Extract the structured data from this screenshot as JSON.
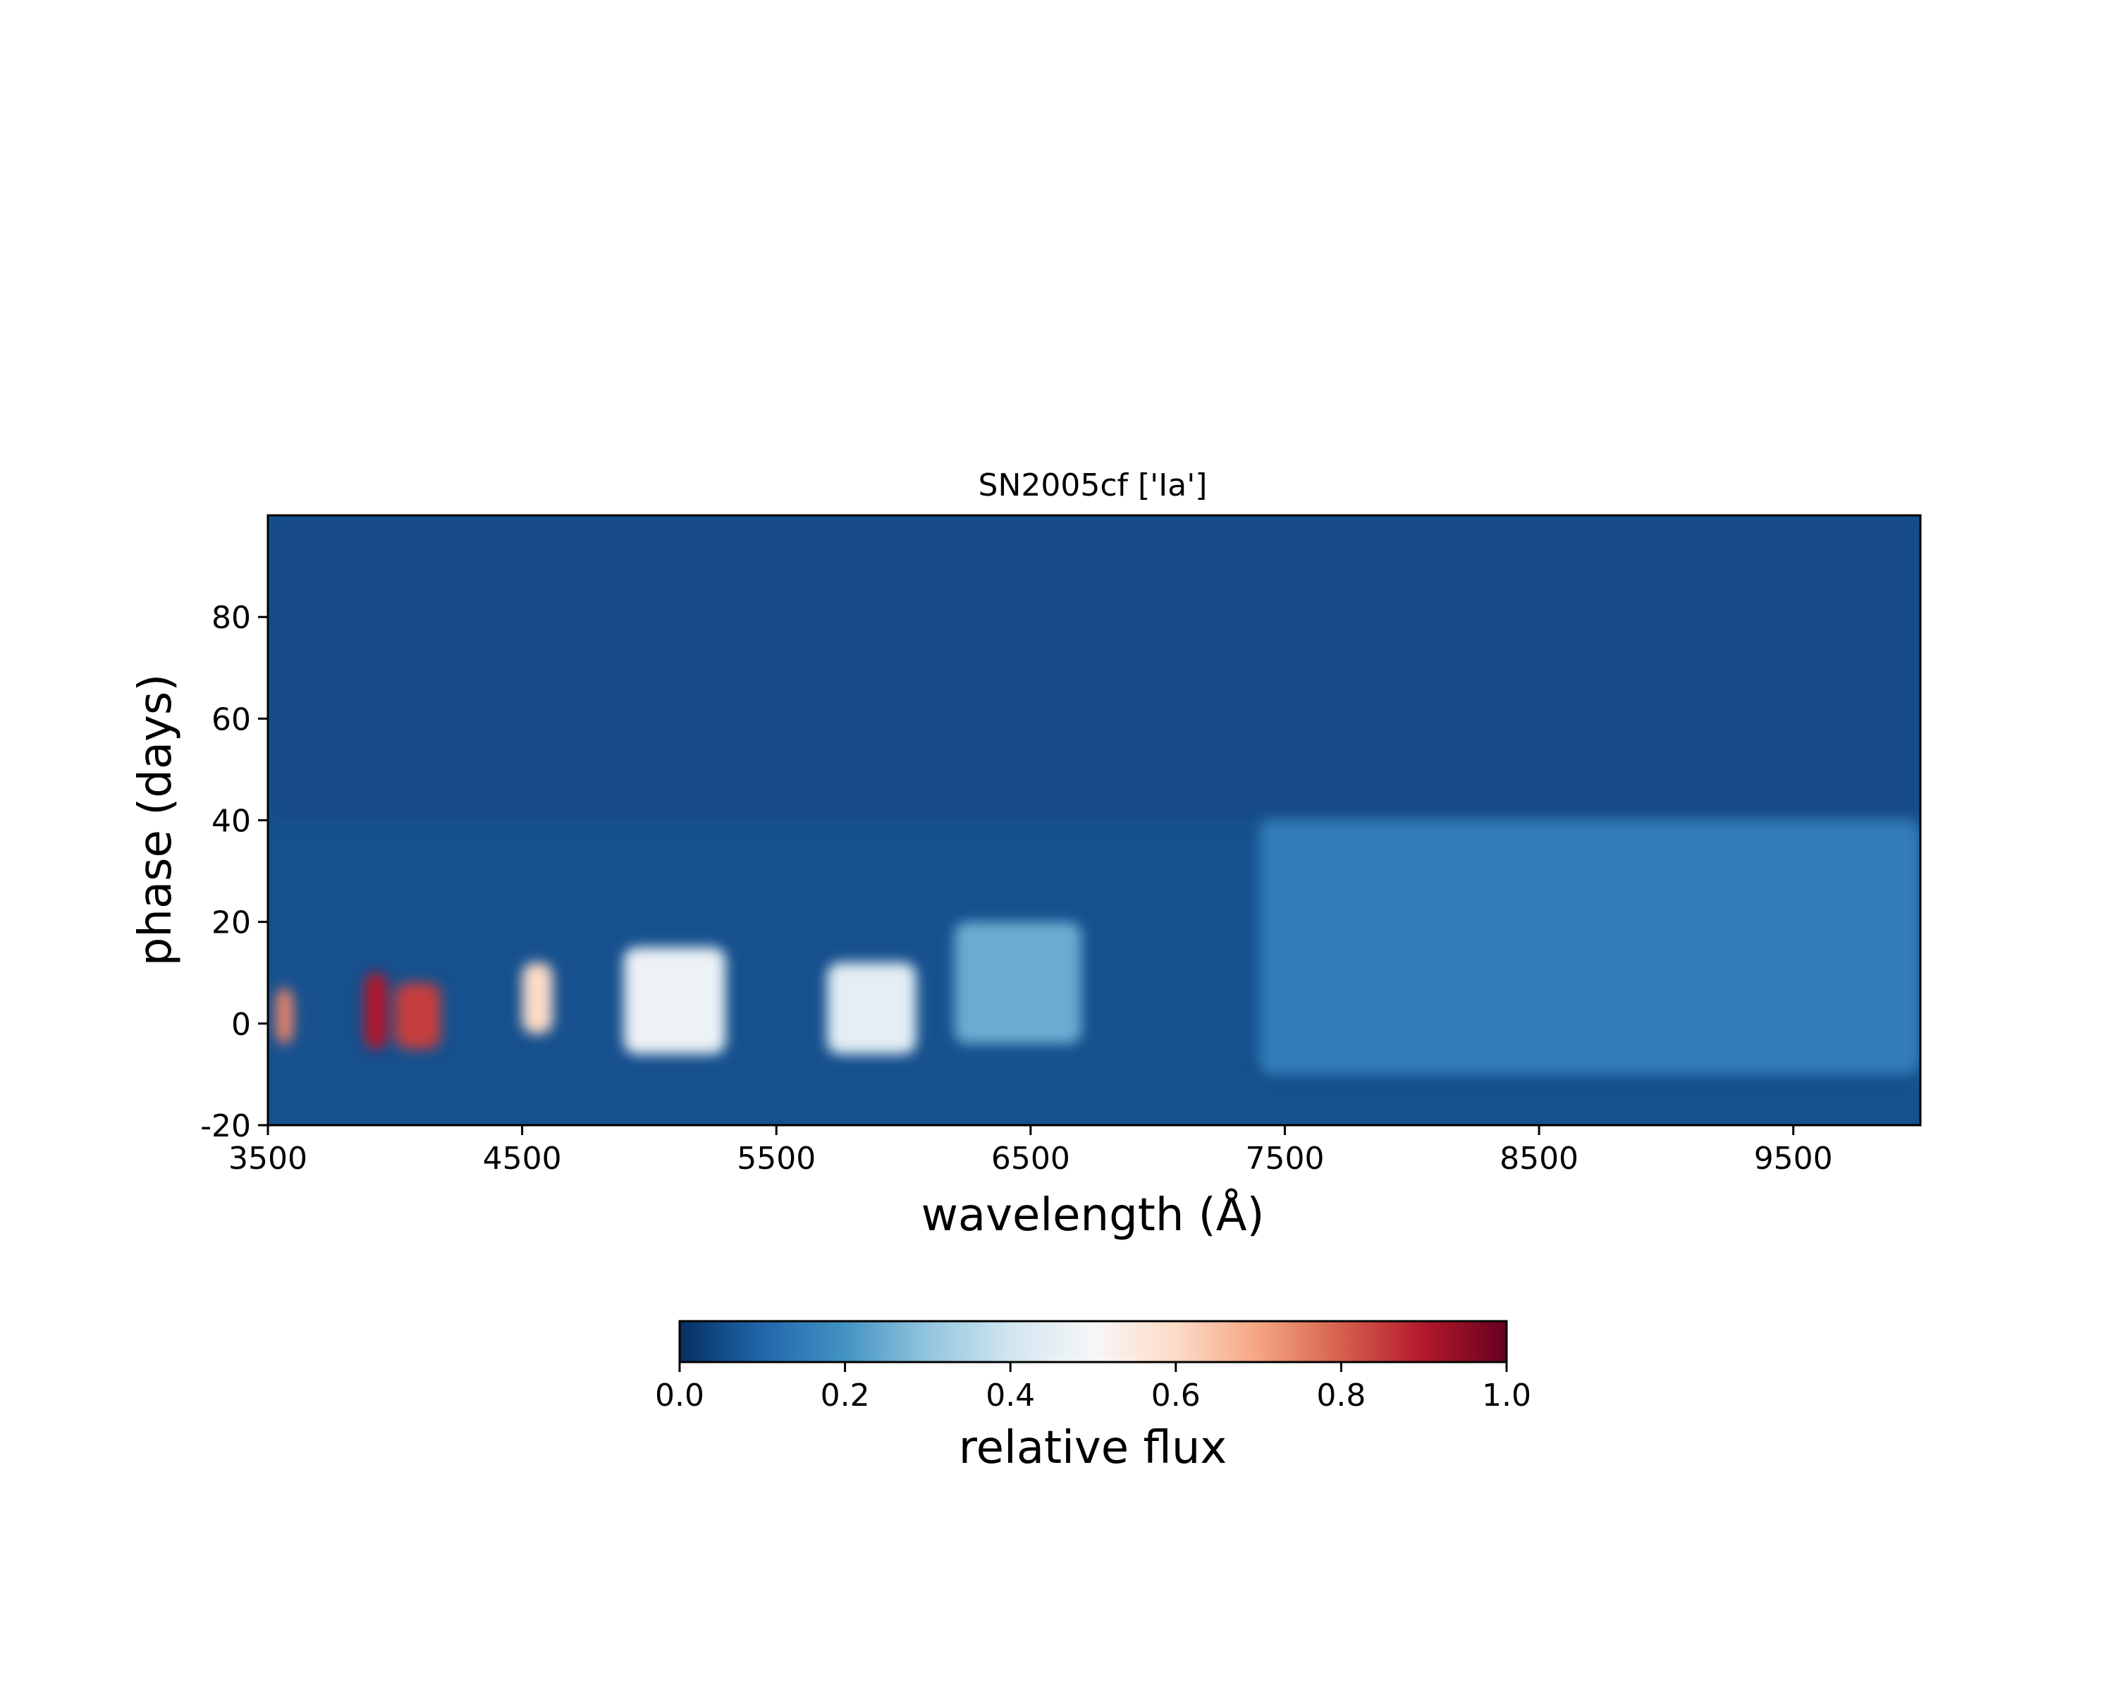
{
  "chart_data": {
    "type": "heatmap",
    "title": "SN2005cf ['Ia']",
    "xlabel": "wavelength (Å)",
    "ylabel": "phase (days)",
    "xlim": [
      3500,
      10000
    ],
    "ylim": [
      -20,
      100
    ],
    "xticks": [
      3500,
      4500,
      5500,
      6500,
      7500,
      8500,
      9500
    ],
    "xtick_labels": [
      "3500",
      "4500",
      "5500",
      "6500",
      "7500",
      "8500",
      "9500"
    ],
    "yticks": [
      -20,
      0,
      20,
      40,
      60,
      80
    ],
    "ytick_labels": [
      "-20",
      "0",
      "20",
      "40",
      "60",
      "80"
    ],
    "colormap": "RdBu_r",
    "colorbar": {
      "label": "relative flux",
      "range": [
        0.0,
        1.0
      ],
      "ticks": [
        0.0,
        0.2,
        0.4,
        0.6,
        0.8,
        1.0
      ],
      "tick_labels": [
        "0.0",
        "0.2",
        "0.4",
        "0.6",
        "0.8",
        "1.0"
      ],
      "orientation": "horizontal",
      "placement": "bottom"
    },
    "features": [
      {
        "wavelength": [
          3530,
          3600
        ],
        "phase": [
          -4,
          7
        ],
        "value": 0.75
      },
      {
        "wavelength": [
          3880,
          3970
        ],
        "phase": [
          -5,
          10
        ],
        "value": 0.9
      },
      {
        "wavelength": [
          4000,
          4180
        ],
        "phase": [
          -5,
          8
        ],
        "value": 0.85
      },
      {
        "wavelength": [
          4500,
          4620
        ],
        "phase": [
          -2,
          12
        ],
        "value": 0.6
      },
      {
        "wavelength": [
          4900,
          5300
        ],
        "phase": [
          -6,
          15
        ],
        "value": 0.47
      },
      {
        "wavelength": [
          5700,
          6050
        ],
        "phase": [
          -6,
          12
        ],
        "value": 0.45
      },
      {
        "wavelength": [
          6200,
          6700
        ],
        "phase": [
          -4,
          20
        ],
        "value": 0.25
      },
      {
        "wavelength": [
          7400,
          10000
        ],
        "phase": [
          -10,
          40
        ],
        "value": 0.15
      },
      {
        "wavelength": [
          3500,
          10000
        ],
        "phase": [
          40,
          100
        ],
        "value": 0.05
      }
    ],
    "grid": false,
    "legend": "none"
  }
}
